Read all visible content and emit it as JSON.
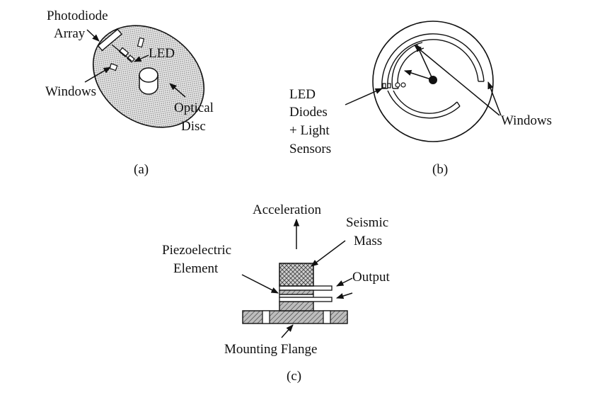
{
  "panel_a": {
    "labels": {
      "photodiode_line1": "Photodiode",
      "photodiode_line2": "Array",
      "led": "LED",
      "windows": "Windows",
      "optical_line1": "Optical",
      "optical_line2": "Disc"
    },
    "caption": "(a)"
  },
  "panel_b": {
    "labels": {
      "led_line1": "LED",
      "led_line2": "Diodes",
      "led_line3": "+ Light",
      "led_line4": "Sensors",
      "windows": "Windows"
    },
    "caption": "(b)"
  },
  "panel_c": {
    "labels": {
      "acceleration": "Acceleration",
      "seismic_line1": "Seismic",
      "seismic_line2": "Mass",
      "piezo_line1": "Piezoelectric",
      "piezo_line2": "Element",
      "output": "Output",
      "mounting": "Mounting Flange"
    },
    "caption": "(c)"
  },
  "colors": {
    "ink": "#111111",
    "background": "#ffffff",
    "stipple": "#888888"
  }
}
